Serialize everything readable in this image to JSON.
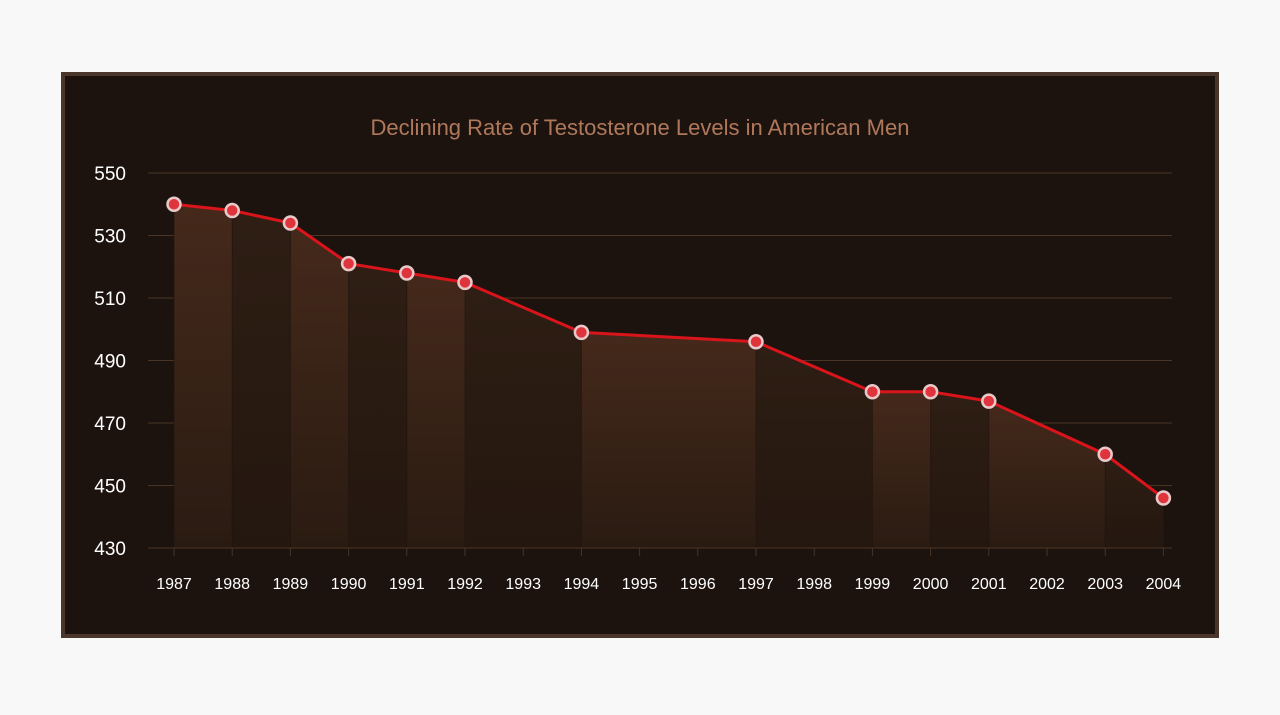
{
  "chart_data": {
    "type": "line",
    "title": "Declining Rate of Testosterone Levels in American Men",
    "xlabel": "",
    "ylabel": "",
    "ylim": [
      430,
      550
    ],
    "yticks": [
      430,
      450,
      470,
      490,
      510,
      530,
      550
    ],
    "categories": [
      "1987",
      "1988",
      "1989",
      "1990",
      "1991",
      "1992",
      "1993",
      "1994",
      "1995",
      "1996",
      "1997",
      "1998",
      "1999",
      "2000",
      "2001",
      "2002",
      "2003",
      "2004"
    ],
    "points": [
      {
        "x": "1987",
        "y": 540
      },
      {
        "x": "1988",
        "y": 538
      },
      {
        "x": "1989",
        "y": 534
      },
      {
        "x": "1990",
        "y": 521
      },
      {
        "x": "1991",
        "y": 518
      },
      {
        "x": "1992",
        "y": 515
      },
      {
        "x": "1994",
        "y": 499
      },
      {
        "x": "1997",
        "y": 496
      },
      {
        "x": "1999",
        "y": 480
      },
      {
        "x": "2000",
        "y": 480
      },
      {
        "x": "2001",
        "y": 477
      },
      {
        "x": "2003",
        "y": 460
      },
      {
        "x": "2004",
        "y": 446
      }
    ],
    "grid": true,
    "legend": "none",
    "colors": {
      "line": "#d9141b",
      "marker_fill": "#e0343c",
      "marker_stroke": "#e8c9c9",
      "title": "#b0785a",
      "axis_text": "#ffffff",
      "grid": "#4a3424",
      "area_dark": "#2b1c13",
      "area_light": "#3d2619"
    }
  }
}
